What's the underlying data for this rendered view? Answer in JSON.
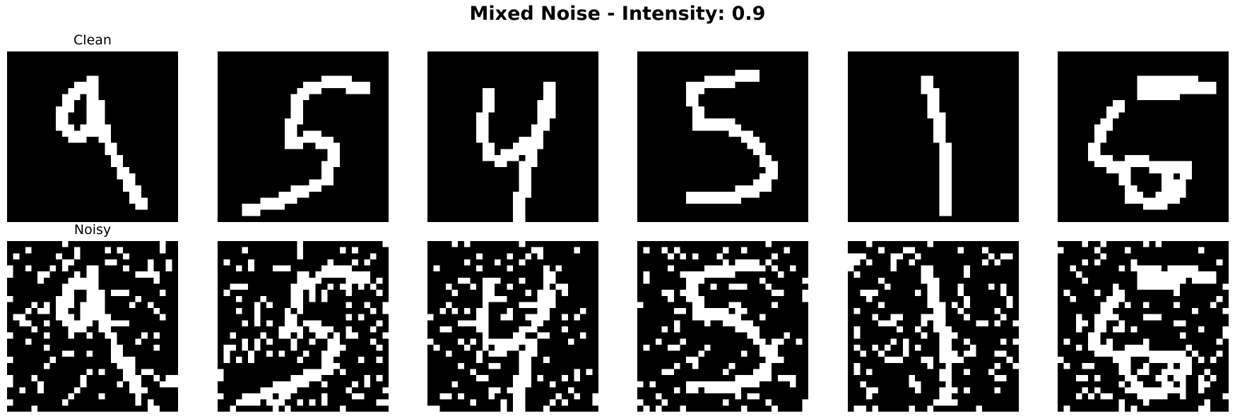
{
  "title": "Mixed Noise - Intensity: 0.9",
  "row_labels": {
    "clean": "Clean",
    "noisy": "Noisy"
  },
  "panels": [
    {
      "id": "digit-9",
      "digit": "9"
    },
    {
      "id": "digit-5a",
      "digit": "5"
    },
    {
      "id": "digit-4",
      "digit": "4"
    },
    {
      "id": "digit-5b",
      "digit": "5"
    },
    {
      "id": "digit-1",
      "digit": "1"
    },
    {
      "id": "digit-6",
      "digit": "6"
    }
  ],
  "noise_intensity": 0.9,
  "colors": {
    "background": "#000000",
    "foreground": "#ffffff"
  }
}
